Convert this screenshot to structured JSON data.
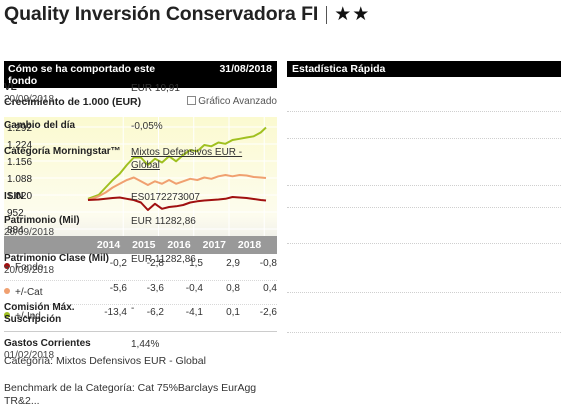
{
  "header": {
    "fund_name": "Quality Inversión Conservadora FI",
    "stars": "★★"
  },
  "left_panel": {
    "title": "Cómo se ha comportado este fondo",
    "date": "31/08/2018",
    "growth_label": "Crecimiento de 1.000 (EUR)",
    "advanced_link": "Gráfico Avanzado"
  },
  "chart_data": {
    "type": "line",
    "title": "",
    "xlabel": "",
    "ylabel": "",
    "y_ticks": [
      "1.292",
      "1.224",
      "1.156",
      "1.088",
      "1.020",
      "952",
      "884"
    ],
    "ylim": [
      884,
      1292
    ],
    "x_ticks": [
      "2014",
      "2015",
      "2016",
      "2017",
      "2018"
    ],
    "grid": true,
    "series": [
      {
        "color": "#a0c020",
        "x": [
          2013.6,
          2013.9,
          2014.1,
          2014.3,
          2014.5,
          2014.7,
          2014.9,
          2015.1,
          2015.3,
          2015.5,
          2015.7,
          2015.9,
          2016.1,
          2016.3,
          2016.5,
          2016.7,
          2016.9,
          2017.1,
          2017.3,
          2017.5,
          2017.7,
          2017.9,
          2018.1,
          2018.3,
          2018.5,
          2018.65
        ],
        "values": [
          1005,
          1020,
          1050,
          1080,
          1105,
          1140,
          1170,
          1170,
          1140,
          1165,
          1150,
          1175,
          1155,
          1180,
          1200,
          1195,
          1220,
          1215,
          1230,
          1225,
          1240,
          1245,
          1250,
          1255,
          1270,
          1290
        ]
      },
      {
        "color": "#f0a070",
        "x": [
          2013.6,
          2013.9,
          2014.1,
          2014.3,
          2014.5,
          2014.7,
          2014.9,
          2015.1,
          2015.3,
          2015.5,
          2015.7,
          2015.9,
          2016.1,
          2016.3,
          2016.5,
          2016.7,
          2016.9,
          2017.1,
          2017.3,
          2017.5,
          2017.7,
          2017.9,
          2018.1,
          2018.3,
          2018.5,
          2018.65
        ],
        "values": [
          1000,
          1015,
          1030,
          1050,
          1065,
          1080,
          1090,
          1075,
          1060,
          1075,
          1065,
          1080,
          1065,
          1075,
          1085,
          1080,
          1090,
          1085,
          1095,
          1100,
          1095,
          1100,
          1098,
          1092,
          1090,
          1088
        ]
      },
      {
        "color": "#a01010",
        "x": [
          2013.6,
          2013.9,
          2014.1,
          2014.3,
          2014.5,
          2014.7,
          2014.9,
          2015.1,
          2015.3,
          2015.5,
          2015.7,
          2015.9,
          2016.1,
          2016.3,
          2016.5,
          2016.7,
          2016.9,
          2017.1,
          2017.3,
          2017.5,
          2017.7,
          2017.9,
          2018.1,
          2018.3,
          2018.5,
          2018.65
        ],
        "values": [
          1000,
          1002,
          1005,
          1008,
          1010,
          1005,
          1000,
          990,
          960,
          985,
          965,
          972,
          975,
          980,
          990,
          995,
          998,
          1000,
          1002,
          1005,
          1012,
          1010,
          1008,
          1004,
          1000,
          998
        ]
      }
    ]
  },
  "performance": {
    "rows": [
      {
        "label": "Fondo",
        "color": "#a01010",
        "values": [
          "-0,2",
          "-2,8",
          "1,5",
          "2,9",
          "-0,8"
        ]
      },
      {
        "label": "+/-Cat",
        "color": "#f0a070",
        "values": [
          "-5,6",
          "-3,6",
          "-0,4",
          "0,8",
          "0,4"
        ]
      },
      {
        "label": "+/-Ind",
        "color": "#a0c020",
        "values": [
          "-13,4",
          "-6,2",
          "-4,1",
          "0,1",
          "-2,6"
        ]
      }
    ]
  },
  "notes": {
    "category": "Categoría: Mixtos Defensivos EUR - Global",
    "benchmark": "Benchmark de la Categoría: Cat 75%Barclays EurAgg TR&2..."
  },
  "right_panel": {
    "title": "Estadística Rápida",
    "stats": [
      {
        "label": "VL",
        "sub": "20/09/2018",
        "value": "EUR 10,91"
      },
      {
        "label": "Cambio del día",
        "sub": "",
        "value": "-0,05%"
      },
      {
        "label": "Categoría Morningstar™",
        "sub": "",
        "value": "Mixtos Defensivos EUR - Global"
      },
      {
        "label": "ISIN",
        "sub": "",
        "value": "ES0172273007"
      },
      {
        "label": "Patrimonio (Mil)",
        "sub": "20/09/2018",
        "value": "EUR 11282,86"
      },
      {
        "label": "Patrimonio Clase (Mil)",
        "sub": "20/09/2018",
        "value": "EUR 11282,86"
      },
      {
        "label": "Comisión Máx. Suscripción",
        "sub": "",
        "value": "-"
      },
      {
        "label": "Gastos Corrientes",
        "sub": "01/02/2018",
        "value": "1,44%"
      }
    ]
  }
}
